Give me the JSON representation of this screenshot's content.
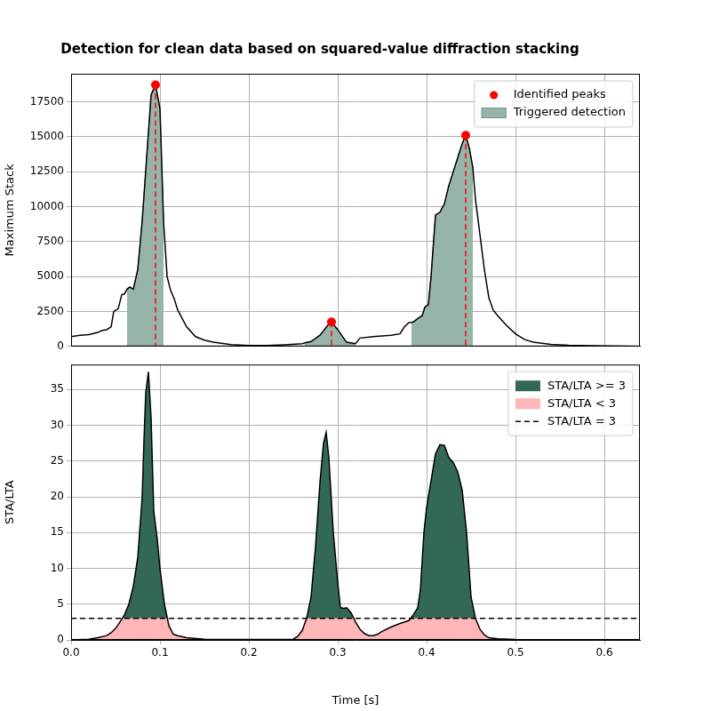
{
  "chart_data": [
    {
      "type": "line",
      "title": "Detection for clean data based on squared-value diffraction stacking",
      "y_label": "Maximum Stack",
      "xlim": [
        0,
        0.64
      ],
      "xticks": [
        {
          "value": 0,
          "label": "0.0"
        },
        0.1,
        0.2,
        0.3,
        0.4,
        0.5,
        0.6
      ],
      "ylim": [
        0,
        19500
      ],
      "yticks": [
        0,
        2500,
        5000,
        7500,
        10000,
        12500,
        15000,
        17500
      ],
      "grid": true,
      "legend": "upper right",
      "tick_labels": "y",
      "series": [
        {
          "type": "line",
          "color": "#000000",
          "x": [
            0,
            0.01,
            0.02,
            0.03,
            0.035,
            0.04,
            0.045,
            0.048,
            0.053,
            0.057,
            0.06,
            0.063,
            0.066,
            0.07,
            0.075,
            0.08,
            0.085,
            0.09,
            0.095,
            0.1,
            0.104,
            0.108,
            0.112,
            0.116,
            0.12,
            0.13,
            0.14,
            0.15,
            0.16,
            0.18,
            0.2,
            0.22,
            0.24,
            0.26,
            0.263,
            0.27,
            0.28,
            0.29,
            0.293,
            0.3,
            0.31,
            0.32,
            0.325,
            0.34,
            0.35,
            0.36,
            0.37,
            0.375,
            0.38,
            0.383,
            0.385,
            0.39,
            0.395,
            0.398,
            0.402,
            0.405,
            0.41,
            0.415,
            0.42,
            0.425,
            0.43,
            0.435,
            0.44,
            0.444,
            0.448,
            0.452,
            0.455,
            0.46,
            0.465,
            0.47,
            0.475,
            0.48,
            0.49,
            0.5,
            0.51,
            0.52,
            0.54,
            0.56,
            0.6,
            0.64
          ],
          "values": [
            700,
            800,
            850,
            1000,
            1150,
            1200,
            1400,
            2500,
            2700,
            3700,
            3750,
            4100,
            4250,
            4100,
            5500,
            9000,
            13500,
            18000,
            18700,
            17000,
            9000,
            5000,
            4000,
            3400,
            2600,
            1400,
            700,
            450,
            300,
            130,
            60,
            60,
            120,
            200,
            260,
            350,
            800,
            1600,
            1750,
            1200,
            300,
            200,
            600,
            700,
            750,
            800,
            900,
            1400,
            1700,
            1720,
            1750,
            2000,
            2200,
            2800,
            3000,
            5000,
            9400,
            9600,
            10200,
            11500,
            12500,
            13500,
            14500,
            15100,
            14200,
            12800,
            10500,
            8000,
            5500,
            3500,
            2600,
            2200,
            1500,
            900,
            500,
            300,
            150,
            80,
            30,
            10
          ]
        },
        {
          "name": "Identified peaks",
          "type": "scatter",
          "color": "#ff0000",
          "marker": "circle",
          "line_style": "dashed",
          "x": [
            0.095,
            0.293,
            0.444
          ],
          "values": [
            18700,
            1750,
            15100
          ]
        },
        {
          "name": "Triggered detection",
          "type": "area",
          "color": "#96b4a8",
          "x": [
            0.063,
            0.066,
            0.07,
            0.075,
            0.08,
            0.085,
            0.09,
            0.095,
            0.1,
            0.104,
            null,
            0.263,
            0.27,
            0.28,
            0.29,
            0.293,
            0.3,
            0.31,
            0.32,
            null,
            0.383,
            0.385,
            0.39,
            0.395,
            0.398,
            0.402,
            0.405,
            0.41,
            0.415,
            0.42,
            0.425,
            0.43,
            0.435,
            0.44,
            0.444,
            0.448,
            0.452
          ],
          "values": [
            4100,
            4250,
            4100,
            5500,
            9000,
            13500,
            18000,
            18700,
            17000,
            9000,
            null,
            260,
            350,
            800,
            1600,
            1750,
            1200,
            300,
            200,
            null,
            1720,
            1750,
            2000,
            2200,
            2800,
            3000,
            5000,
            9400,
            9600,
            10200,
            11500,
            12500,
            13500,
            14500,
            15100,
            14200,
            12800
          ]
        }
      ]
    },
    {
      "type": "line",
      "x_label": "Time [s]",
      "y_label": "STA/LTA",
      "xlim": [
        0,
        0.64
      ],
      "xticks": [
        {
          "value": 0,
          "label": "0.0"
        },
        0.1,
        0.2,
        0.3,
        0.4,
        0.5,
        0.6
      ],
      "ylim": [
        0,
        38.5
      ],
      "yticks": [
        0,
        5,
        10,
        15,
        20,
        25,
        30,
        35
      ],
      "grid": true,
      "legend": "upper right",
      "series": [
        {
          "type": "line",
          "color": "#000000",
          "x": [
            0,
            0.02,
            0.03,
            0.04,
            0.045,
            0.05,
            0.055,
            0.06,
            0.065,
            0.07,
            0.075,
            0.08,
            0.082,
            0.084,
            0.087,
            0.09,
            0.093,
            0.097,
            0.1,
            0.105,
            0.11,
            0.115,
            0.12,
            0.13,
            0.15,
            0.2,
            0.25,
            0.255,
            0.26,
            0.265,
            0.27,
            0.275,
            0.28,
            0.284,
            0.287,
            0.29,
            0.295,
            0.3,
            0.303,
            0.307,
            0.31,
            0.315,
            0.32,
            0.325,
            0.33,
            0.335,
            0.34,
            0.345,
            0.35,
            0.36,
            0.37,
            0.38,
            0.385,
            0.39,
            0.393,
            0.397,
            0.4,
            0.41,
            0.415,
            0.42,
            0.425,
            0.43,
            0.435,
            0.44,
            0.445,
            0.45,
            0.455,
            0.46,
            0.465,
            0.47,
            0.48,
            0.5,
            0.55,
            0.64
          ],
          "values": [
            0,
            0.1,
            0.3,
            0.6,
            1,
            1.6,
            2.5,
            3.5,
            5,
            7.5,
            11.5,
            20,
            28,
            34.5,
            37.5,
            31,
            18,
            14,
            10,
            5,
            2,
            0.8,
            0.6,
            0.3,
            0.1,
            0.05,
            0.1,
            0.5,
            1.3,
            3,
            6,
            13,
            22,
            27.5,
            29,
            25.5,
            15,
            8,
            4.5,
            4.4,
            4.5,
            3.8,
            2.5,
            1.5,
            0.9,
            0.6,
            0.6,
            0.8,
            1.2,
            1.8,
            2.3,
            2.7,
            3.5,
            4.5,
            7,
            15,
            18.5,
            26,
            27.3,
            27.2,
            25.5,
            24.8,
            23.5,
            21,
            15,
            6,
            3,
            1.5,
            0.7,
            0.3,
            0.15,
            0.05,
            0,
            0
          ]
        },
        {
          "name": "STA/LTA >= 3",
          "type": "fill_above",
          "color": "#346856",
          "value": 3
        },
        {
          "name": "STA/LTA < 3",
          "type": "fill_below",
          "color": "#ffb6b6",
          "value": 3
        },
        {
          "name": "STA/LTA = 3",
          "type": "hline",
          "color": "#000000",
          "line_style": "dashed",
          "value": 3
        }
      ]
    }
  ]
}
